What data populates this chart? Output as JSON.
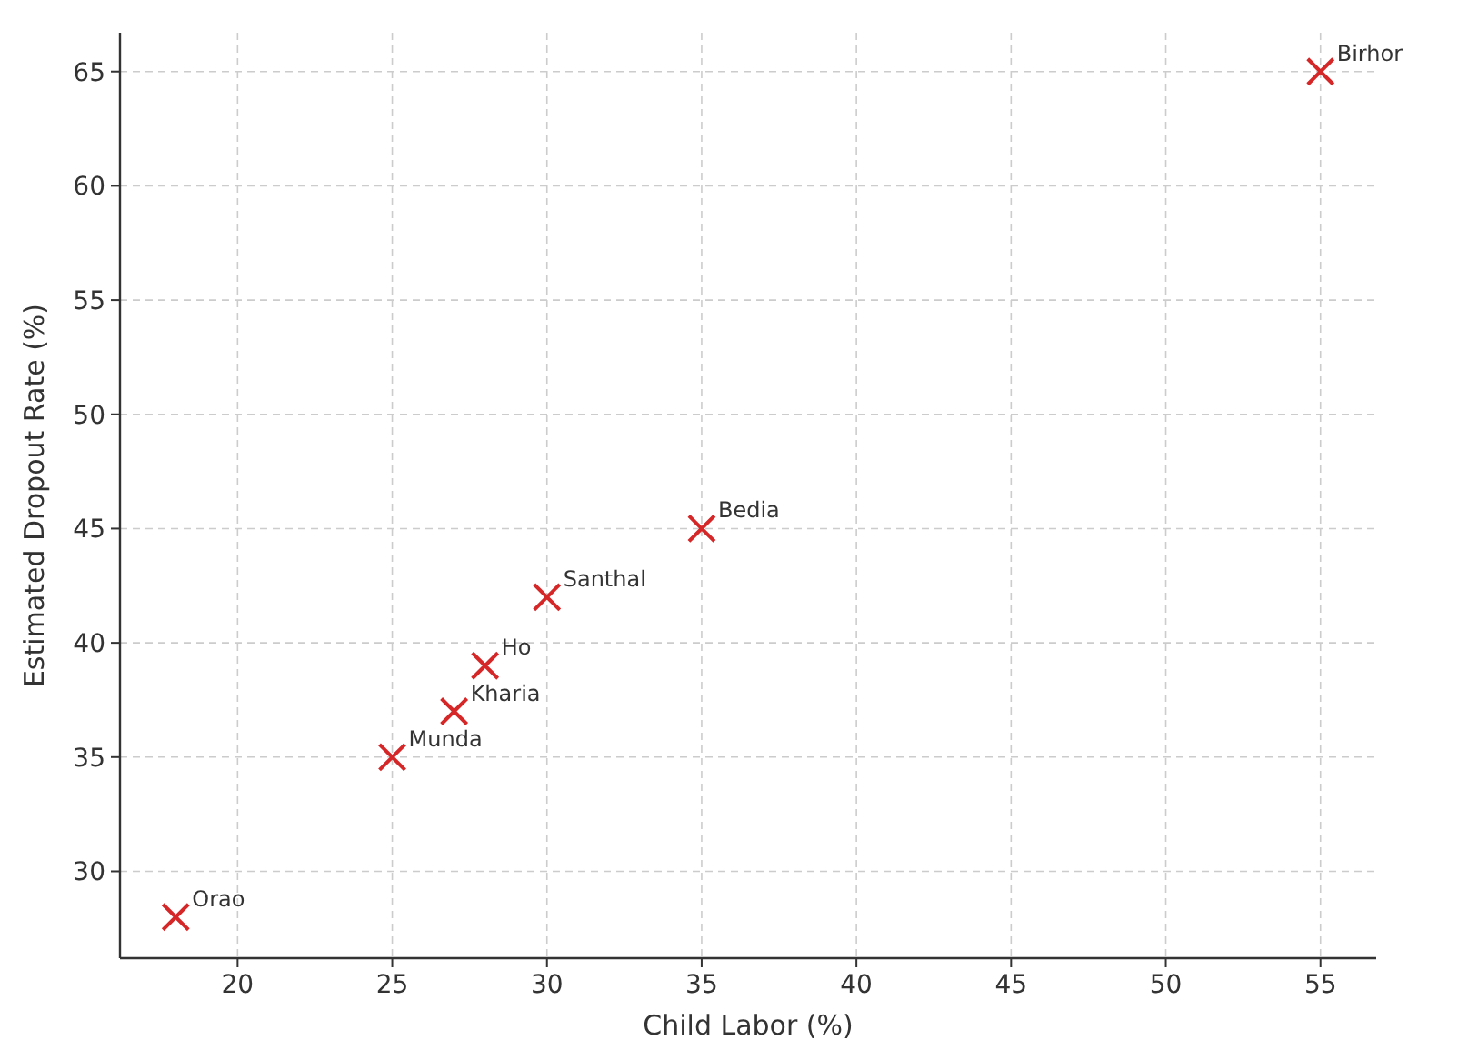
{
  "chart_data": {
    "type": "scatter",
    "xlabel": "Child Labor (%)",
    "ylabel": "Estimated Dropout Rate (%)",
    "x": [
      18,
      25,
      27,
      28,
      30,
      35,
      55
    ],
    "series": [
      {
        "color": "#d62728",
        "values": [
          28,
          35,
          37,
          39,
          42,
          45,
          65
        ]
      }
    ],
    "marker": "cross",
    "grid": true,
    "xlim": [
      16.2,
      56.8
    ],
    "xticks": [
      20,
      25,
      30,
      35,
      40,
      45,
      50,
      55
    ],
    "ylim": [
      26.2,
      66.7
    ],
    "yticks": [
      30,
      35,
      40,
      45,
      50,
      55,
      60,
      65
    ],
    "annotations": [
      {
        "text": "Orao",
        "x": 18,
        "y": 28
      },
      {
        "text": "Munda",
        "x": 25,
        "y": 35
      },
      {
        "text": "Kharia",
        "x": 27,
        "y": 37
      },
      {
        "text": "Ho",
        "x": 28,
        "y": 39
      },
      {
        "text": "Santhal",
        "x": 30,
        "y": 42
      },
      {
        "text": "Bedia",
        "x": 35,
        "y": 45
      },
      {
        "text": "Birhor",
        "x": 55,
        "y": 65
      }
    ]
  }
}
